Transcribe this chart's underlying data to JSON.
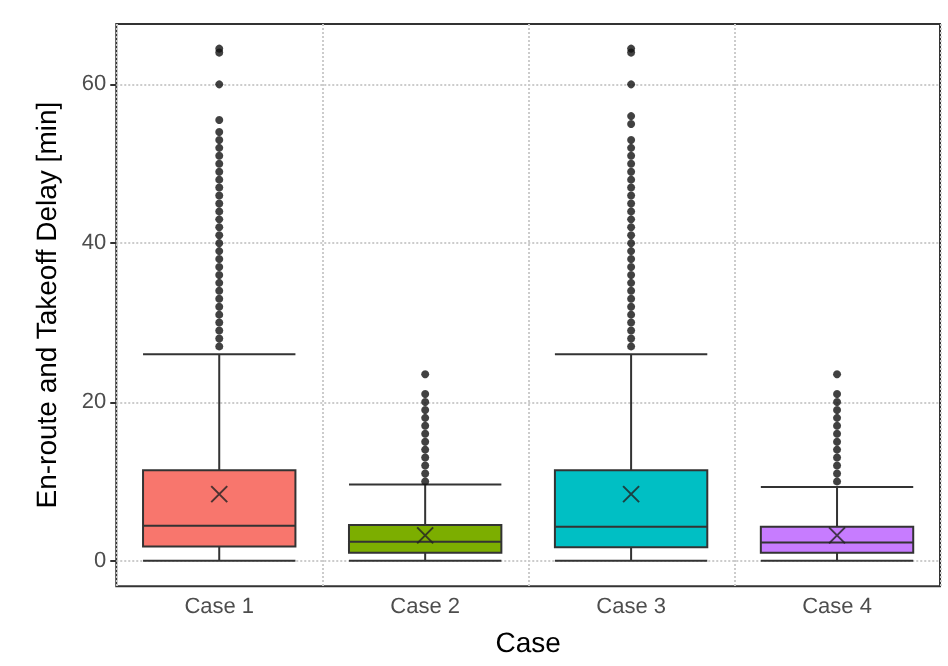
{
  "chart_data": {
    "type": "box",
    "xlabel": "Case",
    "ylabel": "En-route and Takeoff Delay [min]",
    "categories": [
      "Case 1",
      "Case 2",
      "Case 3",
      "Case 4"
    ],
    "colors": [
      "#f8766d",
      "#7cae00",
      "#00bfc4",
      "#c77cff"
    ],
    "boxes": [
      {
        "low": 0,
        "q1": 1.8,
        "median": 4.4,
        "q3": 11.4,
        "high": 26,
        "mean": 8.4,
        "outliers": [
          27,
          28,
          29,
          30,
          31,
          32,
          33,
          34,
          35,
          36,
          37,
          38,
          39,
          40,
          41,
          42,
          43,
          44,
          45,
          46,
          47,
          48,
          49,
          50,
          51,
          52,
          53,
          54,
          55.5,
          60,
          64,
          64.5
        ]
      },
      {
        "low": 0,
        "q1": 1,
        "median": 2.4,
        "q3": 4.5,
        "high": 9.6,
        "mean": 3.2,
        "outliers": [
          10,
          11,
          12,
          13,
          14,
          15,
          16,
          17,
          18,
          19,
          20,
          21,
          23.5
        ]
      },
      {
        "low": 0,
        "q1": 1.7,
        "median": 4.3,
        "q3": 11.4,
        "high": 26,
        "mean": 8.4,
        "outliers": [
          27,
          28,
          29,
          30,
          31,
          32,
          33,
          34,
          35,
          36,
          37,
          38,
          39,
          40,
          41,
          42,
          43,
          44,
          45,
          46,
          47,
          48,
          49,
          50,
          51,
          52,
          53,
          55,
          56,
          60,
          64,
          64.5
        ]
      },
      {
        "low": 0,
        "q1": 1,
        "median": 2.3,
        "q3": 4.3,
        "high": 9.3,
        "mean": 3.2,
        "outliers": [
          10,
          11,
          12,
          13,
          14,
          15,
          16,
          17,
          18,
          19,
          20,
          21,
          23.5
        ]
      }
    ],
    "ylim": [
      -3.2,
      67.6
    ],
    "yticks": [
      0,
      20,
      40,
      60
    ],
    "grid": true
  }
}
